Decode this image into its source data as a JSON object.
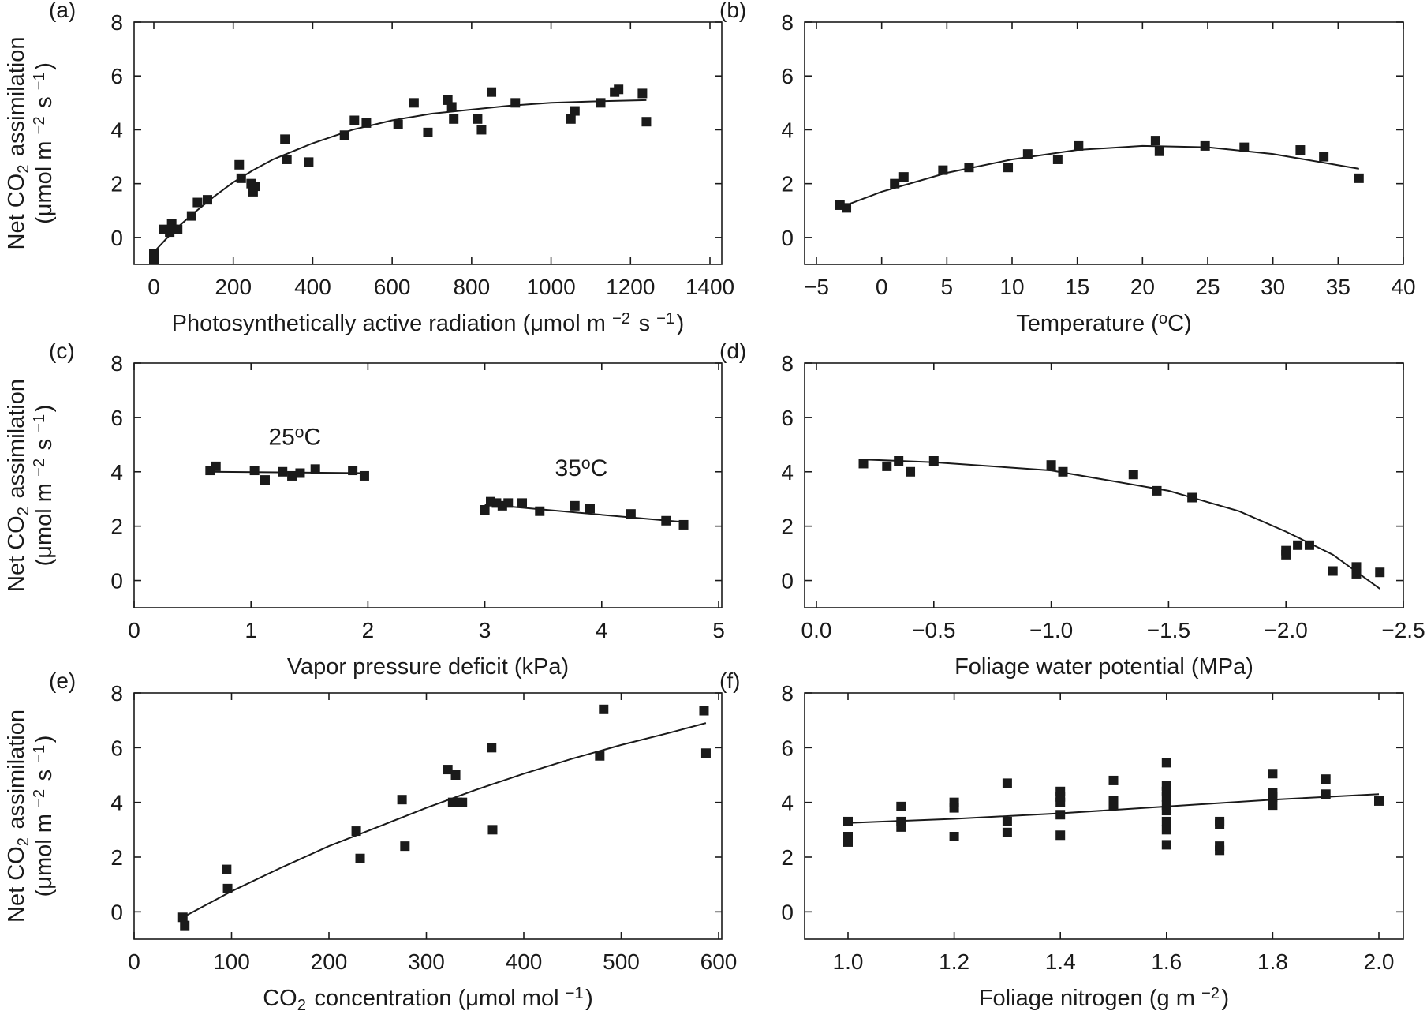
{
  "chart_data": [
    {
      "panel": "(a)",
      "type": "scatter",
      "xlabel": "Photosynthetically active radiation (μmol m−2 s−1)",
      "ylabel": "Net CO2 assimilation (μmol m−2 s−1)",
      "xlim": [
        -40,
        1400
      ],
      "ylim": [
        -1,
        8
      ],
      "xticks": [
        0,
        200,
        400,
        600,
        800,
        1000,
        1200,
        1400
      ],
      "yticks": [
        0,
        2,
        4,
        6,
        8
      ],
      "points": [
        [
          0,
          -0.6
        ],
        [
          0,
          -0.8
        ],
        [
          25,
          0.3
        ],
        [
          40,
          0.2
        ],
        [
          45,
          0.5
        ],
        [
          50,
          0.3
        ],
        [
          60,
          0.3
        ],
        [
          95,
          0.8
        ],
        [
          110,
          1.3
        ],
        [
          135,
          1.4
        ],
        [
          215,
          2.7
        ],
        [
          220,
          2.2
        ],
        [
          245,
          2.0
        ],
        [
          250,
          1.7
        ],
        [
          255,
          1.9
        ],
        [
          330,
          3.65
        ],
        [
          335,
          2.9
        ],
        [
          390,
          2.8
        ],
        [
          480,
          3.8
        ],
        [
          505,
          4.35
        ],
        [
          535,
          4.25
        ],
        [
          615,
          4.2
        ],
        [
          655,
          5.0
        ],
        [
          690,
          3.9
        ],
        [
          740,
          5.1
        ],
        [
          750,
          4.85
        ],
        [
          755,
          4.4
        ],
        [
          815,
          4.4
        ],
        [
          825,
          4.0
        ],
        [
          850,
          5.4
        ],
        [
          910,
          5.0
        ],
        [
          1050,
          4.4
        ],
        [
          1060,
          4.7
        ],
        [
          1125,
          5.0
        ],
        [
          1160,
          5.4
        ],
        [
          1170,
          5.5
        ],
        [
          1230,
          5.35
        ],
        [
          1240,
          4.3
        ]
      ],
      "fit": [
        [
          0,
          -0.55
        ],
        [
          50,
          0.25
        ],
        [
          100,
          0.9
        ],
        [
          150,
          1.5
        ],
        [
          200,
          2.05
        ],
        [
          250,
          2.5
        ],
        [
          300,
          2.9
        ],
        [
          400,
          3.5
        ],
        [
          500,
          4.0
        ],
        [
          600,
          4.35
        ],
        [
          700,
          4.6
        ],
        [
          800,
          4.75
        ],
        [
          900,
          4.9
        ],
        [
          1000,
          5.0
        ],
        [
          1100,
          5.05
        ],
        [
          1240,
          5.1
        ]
      ]
    },
    {
      "panel": "(b)",
      "type": "scatter",
      "xlabel": "Temperature (oC)",
      "ylabel": "",
      "xlim": [
        -5,
        40
      ],
      "ylim": [
        -1,
        8
      ],
      "xticks": [
        -5,
        0,
        5,
        10,
        15,
        20,
        25,
        30,
        35,
        40
      ],
      "yticks": [
        0,
        2,
        4,
        6,
        8
      ],
      "points": [
        [
          -3.2,
          1.2
        ],
        [
          -2.7,
          1.1
        ],
        [
          1,
          2.0
        ],
        [
          1.7,
          2.25
        ],
        [
          4.7,
          2.5
        ],
        [
          6.7,
          2.6
        ],
        [
          9.7,
          2.6
        ],
        [
          11.2,
          3.1
        ],
        [
          13.5,
          2.9
        ],
        [
          15.1,
          3.4
        ],
        [
          21,
          3.6
        ],
        [
          21.3,
          3.2
        ],
        [
          24.8,
          3.4
        ],
        [
          27.8,
          3.35
        ],
        [
          32.1,
          3.25
        ],
        [
          33.9,
          3.0
        ],
        [
          36.6,
          2.2
        ]
      ],
      "fit": [
        [
          -3,
          1.15
        ],
        [
          0,
          1.7
        ],
        [
          5,
          2.4
        ],
        [
          10,
          2.9
        ],
        [
          15,
          3.25
        ],
        [
          20,
          3.4
        ],
        [
          25,
          3.35
        ],
        [
          30,
          3.1
        ],
        [
          36.6,
          2.55
        ]
      ]
    },
    {
      "panel": "(c)",
      "type": "scatter",
      "xlabel": "Vapor pressure deficit (kPa)",
      "ylabel": "Net CO2 assimilation (μmol m−2 s−1)",
      "xlim": [
        0,
        5
      ],
      "ylim": [
        -1,
        8
      ],
      "xticks": [
        0,
        1,
        2,
        3,
        4,
        5
      ],
      "yticks": [
        0,
        2,
        4,
        6,
        8
      ],
      "annotations": [
        {
          "text": "25",
          "sup": "o",
          "unit": "C",
          "x": 1.15,
          "y": 5.0
        },
        {
          "text": "35",
          "sup": "o",
          "unit": "C",
          "x": 3.6,
          "y": 3.85
        }
      ],
      "series": [
        {
          "points": [
            [
              0.65,
              4.05
            ],
            [
              0.7,
              4.2
            ],
            [
              1.03,
              4.05
            ],
            [
              1.12,
              3.7
            ],
            [
              1.27,
              4.0
            ],
            [
              1.35,
              3.85
            ],
            [
              1.42,
              3.95
            ],
            [
              1.55,
              4.1
            ],
            [
              1.87,
              4.05
            ],
            [
              1.97,
              3.85
            ]
          ],
          "fit": [
            [
              0.65,
              4.0
            ],
            [
              1.97,
              3.95
            ]
          ]
        },
        {
          "points": [
            [
              3.0,
              2.6
            ],
            [
              3.05,
              2.9
            ],
            [
              3.1,
              2.85
            ],
            [
              3.15,
              2.75
            ],
            [
              3.2,
              2.85
            ],
            [
              3.32,
              2.85
            ],
            [
              3.47,
              2.55
            ],
            [
              3.77,
              2.75
            ],
            [
              3.9,
              2.65
            ],
            [
              4.25,
              2.45
            ],
            [
              4.55,
              2.2
            ],
            [
              4.7,
              2.05
            ]
          ],
          "fit": [
            [
              3.0,
              2.8
            ],
            [
              4.7,
              2.15
            ]
          ]
        }
      ]
    },
    {
      "panel": "(d)",
      "type": "scatter",
      "xlabel": "Foliage water potential (MPa)",
      "ylabel": "",
      "xlim": [
        0,
        -2.5
      ],
      "ylim": [
        -1,
        8
      ],
      "xticks": [
        0,
        -0.5,
        -1,
        -1.5,
        -2,
        -2.5
      ],
      "xticklabels": [
        "0.0",
        "−0.5",
        "−1.0",
        "−1.5",
        "−2.0",
        "−2.5"
      ],
      "yticks": [
        0,
        2,
        4,
        6,
        8
      ],
      "points": [
        [
          -0.2,
          4.3
        ],
        [
          -0.3,
          4.2
        ],
        [
          -0.35,
          4.4
        ],
        [
          -0.4,
          4.0
        ],
        [
          -0.5,
          4.4
        ],
        [
          -1.0,
          4.25
        ],
        [
          -1.05,
          4.0
        ],
        [
          -1.35,
          3.9
        ],
        [
          -1.45,
          3.3
        ],
        [
          -1.6,
          3.05
        ],
        [
          -2.0,
          1.1
        ],
        [
          -2.0,
          0.95
        ],
        [
          -2.05,
          1.3
        ],
        [
          -2.1,
          1.3
        ],
        [
          -2.2,
          0.35
        ],
        [
          -2.3,
          0.5
        ],
        [
          -2.3,
          0.25
        ],
        [
          -2.4,
          0.3
        ]
      ],
      "fit": [
        [
          -0.2,
          4.45
        ],
        [
          -0.5,
          4.35
        ],
        [
          -1.0,
          4.05
        ],
        [
          -1.5,
          3.3
        ],
        [
          -1.8,
          2.55
        ],
        [
          -2.0,
          1.8
        ],
        [
          -2.2,
          0.95
        ],
        [
          -2.4,
          -0.3
        ]
      ]
    },
    {
      "panel": "(e)",
      "type": "scatter",
      "xlabel": "CO2 concentration (μmol mol−1)",
      "ylabel": "Net CO2 assimilation (μmol m−2 s−1)",
      "xlim": [
        0,
        600
      ],
      "ylim": [
        -1,
        8
      ],
      "xticks": [
        0,
        100,
        200,
        300,
        400,
        500,
        600
      ],
      "yticks": [
        0,
        2,
        4,
        6,
        8
      ],
      "points": [
        [
          50,
          -0.2
        ],
        [
          52,
          -0.5
        ],
        [
          95,
          1.55
        ],
        [
          96,
          0.85
        ],
        [
          228,
          2.95
        ],
        [
          232,
          1.95
        ],
        [
          275,
          4.1
        ],
        [
          278,
          2.4
        ],
        [
          322,
          5.2
        ],
        [
          327,
          4.0
        ],
        [
          330,
          5.0
        ],
        [
          332,
          4.0
        ],
        [
          337,
          4.0
        ],
        [
          367,
          6.0
        ],
        [
          368,
          3.0
        ],
        [
          478,
          5.7
        ],
        [
          482,
          7.4
        ],
        [
          585,
          7.35
        ],
        [
          587,
          5.8
        ]
      ],
      "fit": [
        [
          50,
          -0.2
        ],
        [
          100,
          0.75
        ],
        [
          150,
          1.6
        ],
        [
          200,
          2.4
        ],
        [
          250,
          3.1
        ],
        [
          300,
          3.8
        ],
        [
          350,
          4.45
        ],
        [
          400,
          5.05
        ],
        [
          450,
          5.6
        ],
        [
          500,
          6.1
        ],
        [
          550,
          6.55
        ],
        [
          587,
          6.9
        ]
      ]
    },
    {
      "panel": "(f)",
      "type": "scatter",
      "xlabel": "Foliage nitrogen (g m−2)",
      "ylabel": "",
      "xlim": [
        0.9,
        2.05
      ],
      "ylim": [
        -1,
        8
      ],
      "xticks": [
        1.0,
        1.2,
        1.4,
        1.6,
        1.8,
        2.0
      ],
      "xticklabels": [
        "1.0",
        "1.2",
        "1.4",
        "1.6",
        "1.8",
        "2.0"
      ],
      "yticks": [
        0,
        2,
        4,
        6,
        8
      ],
      "points": [
        [
          1.0,
          3.3
        ],
        [
          1.0,
          2.75
        ],
        [
          1.0,
          2.55
        ],
        [
          1.1,
          3.85
        ],
        [
          1.1,
          3.3
        ],
        [
          1.1,
          3.1
        ],
        [
          1.2,
          4.0
        ],
        [
          1.2,
          3.8
        ],
        [
          1.2,
          2.75
        ],
        [
          1.3,
          4.7
        ],
        [
          1.3,
          3.3
        ],
        [
          1.3,
          2.9
        ],
        [
          1.4,
          4.4
        ],
        [
          1.4,
          4.2
        ],
        [
          1.4,
          4.0
        ],
        [
          1.4,
          3.55
        ],
        [
          1.4,
          2.8
        ],
        [
          1.5,
          4.8
        ],
        [
          1.5,
          4.05
        ],
        [
          1.5,
          3.9
        ],
        [
          1.6,
          5.45
        ],
        [
          1.6,
          4.6
        ],
        [
          1.6,
          4.4
        ],
        [
          1.6,
          4.2
        ],
        [
          1.6,
          3.9
        ],
        [
          1.6,
          3.7
        ],
        [
          1.6,
          3.3
        ],
        [
          1.6,
          3.0
        ],
        [
          1.6,
          2.45
        ],
        [
          1.7,
          3.3
        ],
        [
          1.7,
          3.2
        ],
        [
          1.7,
          2.4
        ],
        [
          1.7,
          2.25
        ],
        [
          1.8,
          5.05
        ],
        [
          1.8,
          4.35
        ],
        [
          1.8,
          4.2
        ],
        [
          1.8,
          3.9
        ],
        [
          1.9,
          4.85
        ],
        [
          1.9,
          4.3
        ],
        [
          2.0,
          4.05
        ]
      ],
      "fit": [
        [
          1.0,
          3.25
        ],
        [
          1.2,
          3.4
        ],
        [
          1.4,
          3.6
        ],
        [
          1.6,
          3.85
        ],
        [
          1.8,
          4.1
        ],
        [
          2.0,
          4.3
        ]
      ]
    }
  ],
  "style": {
    "marker_color": "#1a1a1a",
    "line_color": "#1a1a1a",
    "axis_color": "#1a1a1a"
  }
}
